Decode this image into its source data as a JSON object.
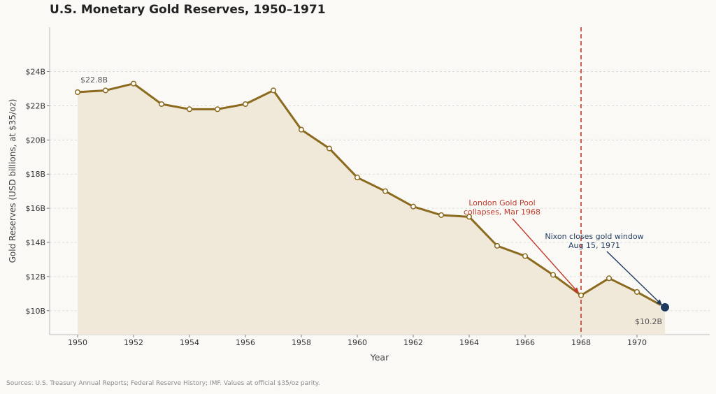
{
  "chart_data": {
    "type": "area",
    "title": "U.S. Monetary Gold Reserves, 1950–1971",
    "xlabel": "Year",
    "ylabel": "Gold Reserves (USD billions, at $35/oz)",
    "x": [
      1950,
      1951,
      1952,
      1953,
      1954,
      1955,
      1956,
      1957,
      1958,
      1959,
      1960,
      1961,
      1962,
      1963,
      1964,
      1965,
      1966,
      1967,
      1968,
      1969,
      1970,
      1971
    ],
    "series": [
      {
        "name": "",
        "values": [
          22.8,
          22.9,
          23.3,
          22.1,
          21.8,
          21.8,
          22.1,
          22.9,
          20.6,
          19.5,
          17.8,
          17.0,
          16.1,
          15.6,
          15.5,
          13.8,
          13.2,
          12.1,
          10.9,
          11.9,
          11.1,
          10.2
        ]
      }
    ],
    "xlim": [
      1949,
      1972.6
    ],
    "ylim": [
      8.6,
      26.6
    ],
    "x_ticks": [
      1950,
      1952,
      1954,
      1956,
      1958,
      1960,
      1962,
      1964,
      1966,
      1968,
      1970
    ],
    "y_ticks": [
      10,
      12,
      14,
      16,
      18,
      20,
      22,
      24
    ],
    "y_tick_labels": [
      "$10B",
      "$12B",
      "$14B",
      "$16B",
      "$18B",
      "$20B",
      "$22B",
      "$24B"
    ],
    "grid": true,
    "annotations": [
      {
        "text": "$22.8B",
        "x": 1950,
        "y": 22.8
      },
      {
        "text": "$10.2B",
        "x": 1971,
        "y": 10.2
      },
      {
        "text": "London Gold Pool\ncollapses, Mar 1968",
        "x": 1968,
        "y": 10.9
      },
      {
        "text": "Nixon closes gold window\nAug 15, 1971",
        "x": 1971,
        "y": 10.2
      }
    ],
    "vline": {
      "x": 1968
    },
    "colors": {
      "line": "#8b6a1e",
      "fill": "#f0e9da",
      "vline": "#c0392b",
      "pool_annotation": "#c0392b",
      "nixon_annotation": "#1f3a5f",
      "endpoint": "#1f3a5f"
    }
  },
  "footer": "Sources: U.S. Treasury Annual Reports; Federal Reserve History; IMF. Values at official $35/oz parity."
}
